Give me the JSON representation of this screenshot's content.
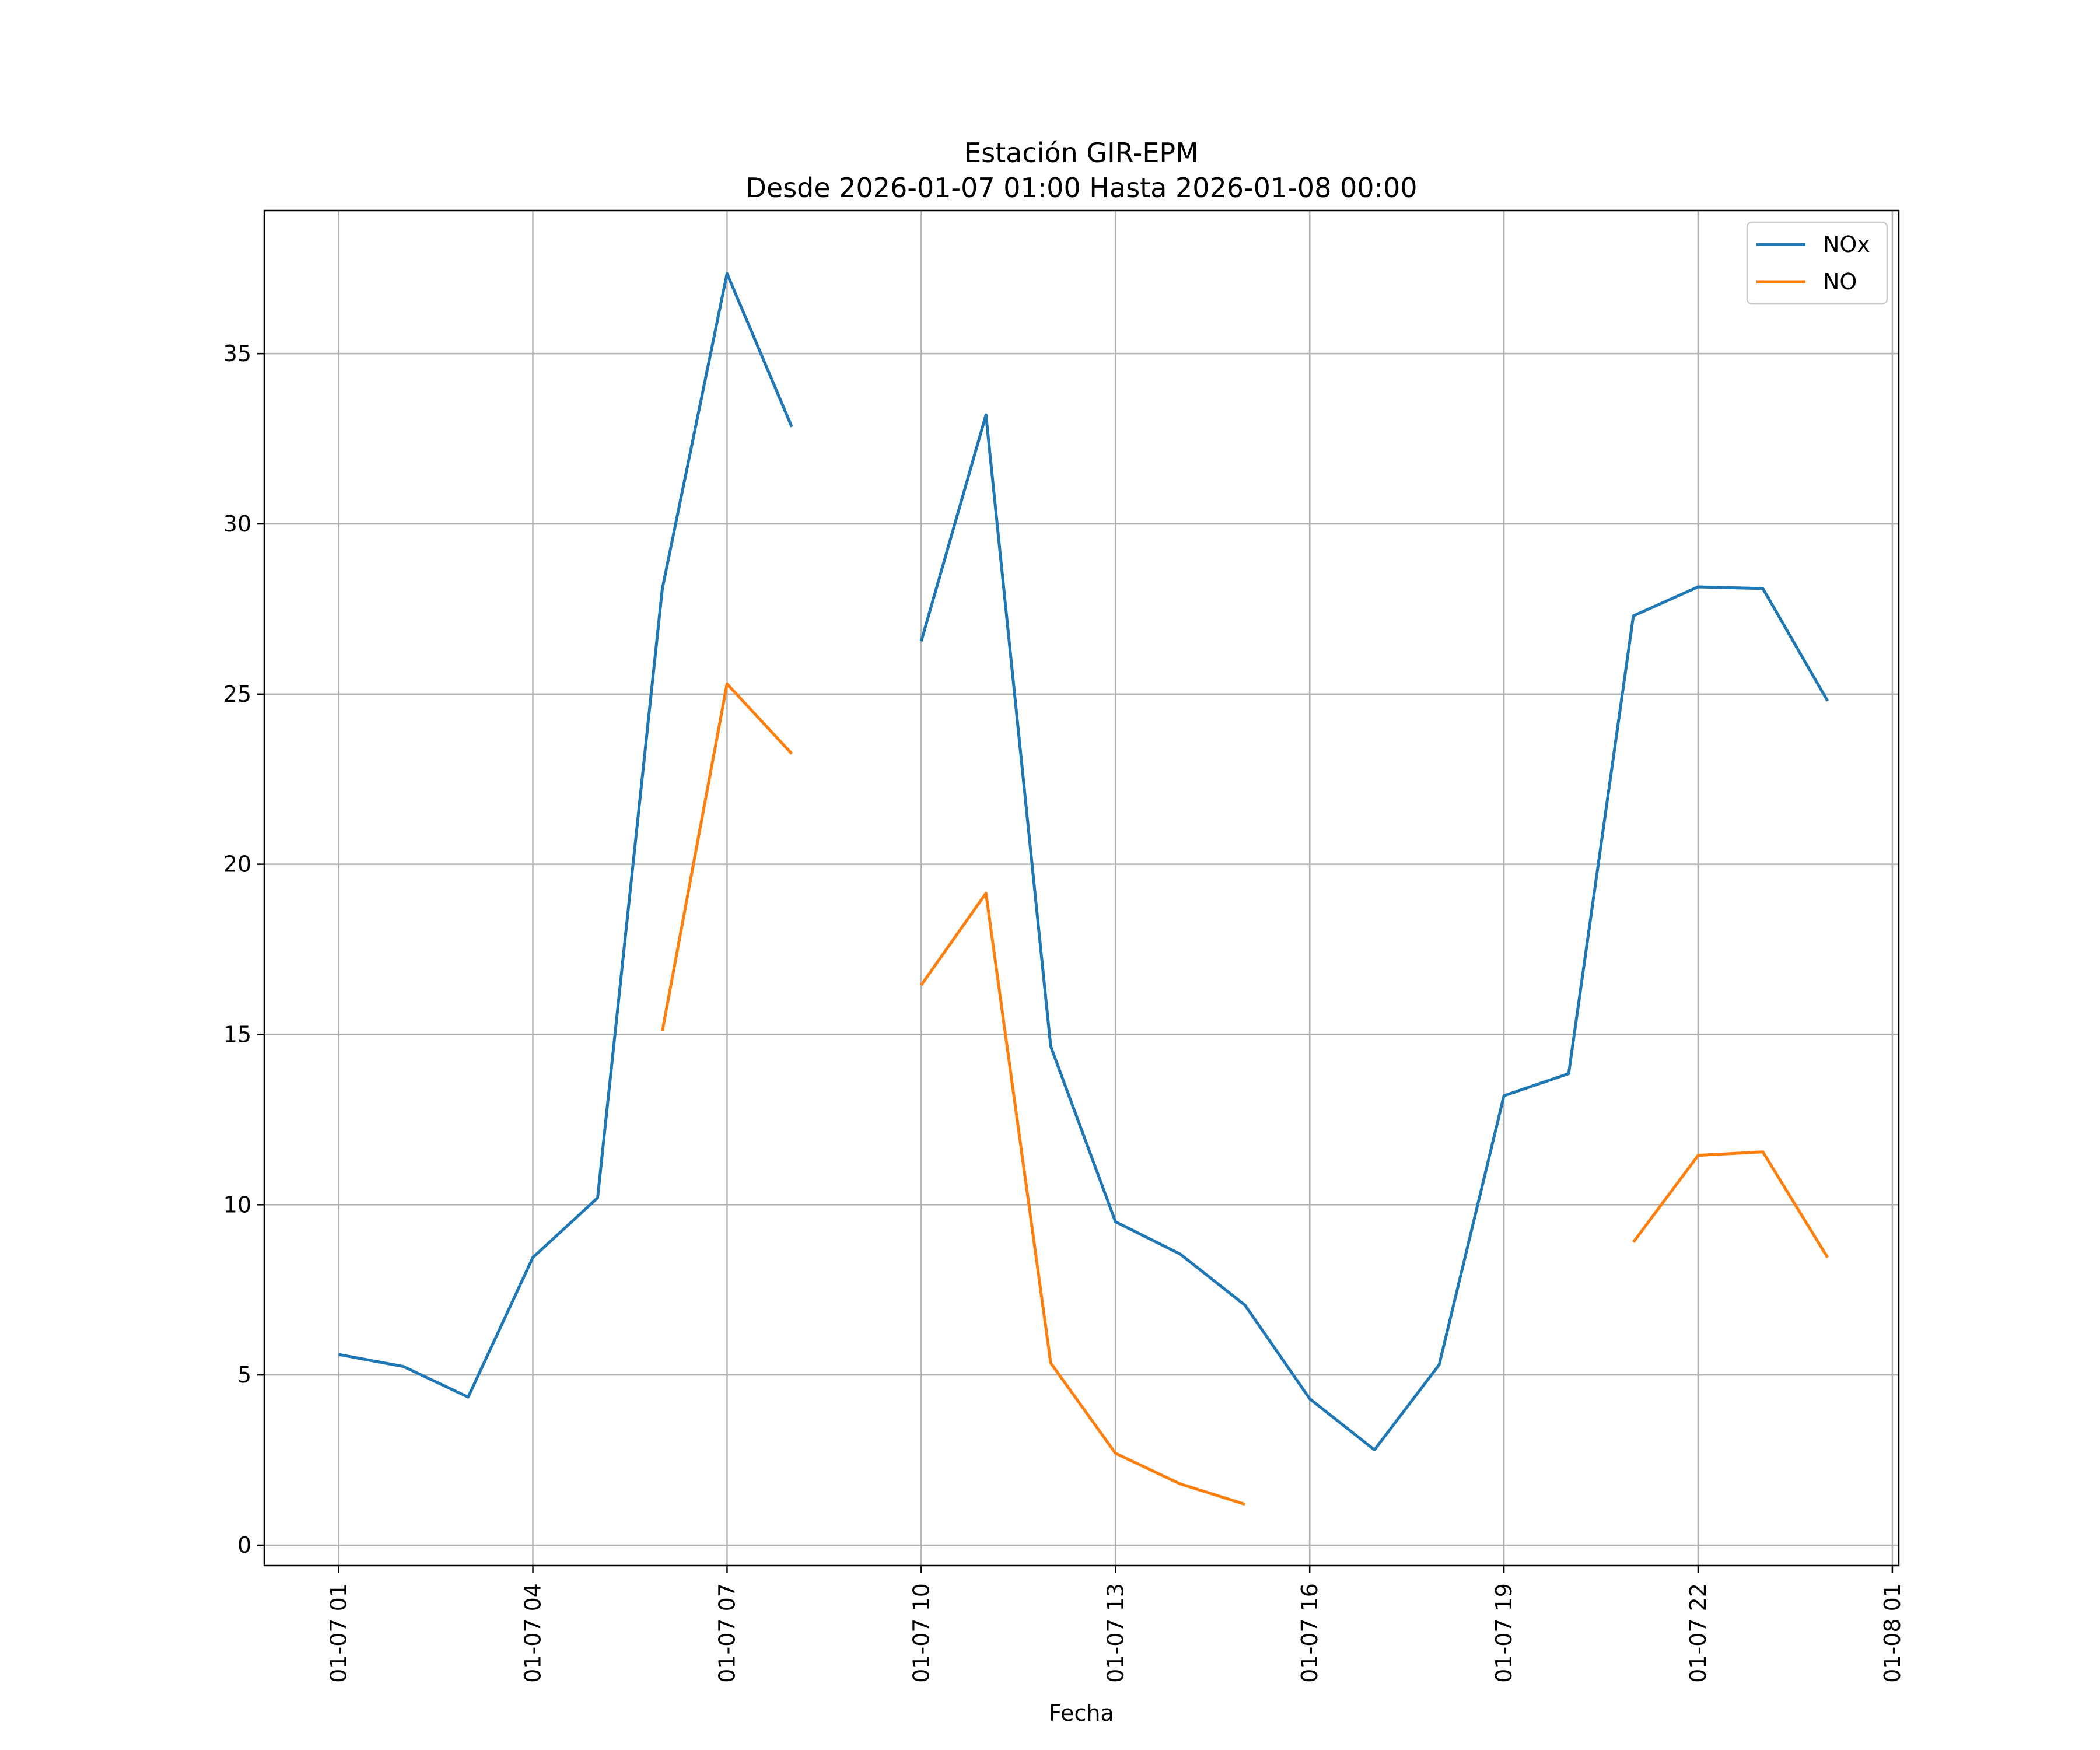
{
  "chart_data": {
    "type": "line",
    "title_line1": "Estación GIR-EPM",
    "title_line2": "Desde 2026-01-07 01:00 Hasta 2026-01-08 00:00",
    "xlabel": "Fecha",
    "ylabel": "",
    "x_ticks": [
      "01-07 01",
      "01-07 04",
      "01-07 07",
      "01-07 10",
      "01-07 13",
      "01-07 16",
      "01-07 19",
      "01-07 22",
      "01-08 01"
    ],
    "x_tick_hours": [
      1,
      4,
      7,
      10,
      13,
      16,
      19,
      22,
      25
    ],
    "xlim": [
      "2026-01-07 -0:09",
      "2026-01-08 01:06"
    ],
    "y_ticks": [
      0,
      5,
      10,
      15,
      20,
      25,
      30,
      35
    ],
    "ylim": [
      -0.6,
      39.2
    ],
    "grid": true,
    "legend_position": "upper right",
    "series": [
      {
        "name": "NOx",
        "color": "#1f77b4",
        "values": [
          5.6,
          5.25,
          4.35,
          8.45,
          10.2,
          28.1,
          37.35,
          32.85,
          null,
          26.55,
          33.2,
          14.65,
          9.5,
          8.55,
          7.05,
          4.3,
          2.8,
          5.3,
          13.2,
          13.85,
          27.3,
          28.15,
          28.1,
          24.8
        ]
      },
      {
        "name": "NO",
        "color": "#ff7f0e",
        "values": [
          null,
          null,
          null,
          null,
          null,
          15.1,
          25.3,
          23.25,
          null,
          16.45,
          19.15,
          5.35,
          2.7,
          1.8,
          1.2,
          null,
          null,
          null,
          null,
          null,
          8.9,
          11.45,
          11.55,
          8.45
        ]
      }
    ],
    "x_hours": [
      1,
      2,
      3,
      4,
      5,
      6,
      7,
      8,
      9,
      10,
      11,
      12,
      13,
      14,
      15,
      16,
      17,
      18,
      19,
      20,
      21,
      22,
      23,
      24
    ]
  }
}
